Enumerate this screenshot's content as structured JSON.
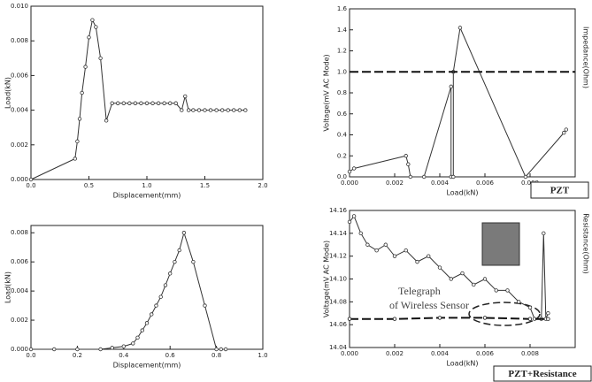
{
  "chart_data": [
    {
      "type": "line",
      "x_label": "Displacement(mm)",
      "y_label": "Load(kN)",
      "xlim": [
        0,
        2.0
      ],
      "ylim": [
        0,
        0.01
      ],
      "xticks": [
        {
          "value": 0,
          "label": "0.0"
        },
        {
          "value": 0.5,
          "label": "0.5"
        },
        {
          "value": 1.0,
          "label": "1.0"
        },
        {
          "value": 1.5,
          "label": "1.5"
        },
        {
          "value": 2.0,
          "label": "2.0"
        }
      ],
      "yticks": [
        {
          "value": 0,
          "label": "0.000"
        },
        {
          "value": 0.002,
          "label": "0.002"
        },
        {
          "value": 0.004,
          "label": "0.004"
        },
        {
          "value": 0.006,
          "label": "0.006"
        },
        {
          "value": 0.008,
          "label": "0.008"
        },
        {
          "value": 0.01,
          "label": "0.010"
        }
      ],
      "series": [
        {
          "color": "#333333",
          "dash": false,
          "markers": true,
          "x": [
            0,
            0.38,
            0.4,
            0.42,
            0.44,
            0.47,
            0.5,
            0.53,
            0.56,
            0.6,
            0.65,
            0.7,
            0.75,
            0.8,
            0.85,
            0.9,
            0.95,
            1.0,
            1.05,
            1.1,
            1.15,
            1.2,
            1.25,
            1.3,
            1.33,
            1.36,
            1.4,
            1.45,
            1.5,
            1.55,
            1.6,
            1.65,
            1.7,
            1.75,
            1.8,
            1.85
          ],
          "values": [
            0,
            0.0012,
            0.0022,
            0.0035,
            0.005,
            0.0065,
            0.0082,
            0.0092,
            0.0088,
            0.007,
            0.0034,
            0.0044,
            0.0044,
            0.0044,
            0.0044,
            0.0044,
            0.0044,
            0.0044,
            0.0044,
            0.0044,
            0.0044,
            0.0044,
            0.0044,
            0.004,
            0.0048,
            0.004,
            0.004,
            0.004,
            0.004,
            0.004,
            0.004,
            0.004,
            0.004,
            0.004,
            0.004,
            0.004
          ]
        }
      ]
    },
    {
      "type": "line",
      "x_label": "Load(kN)",
      "y_label": "Voltage(mV AC Mode)",
      "y2_label": "Impedance(Ohm)",
      "caption": "PZT",
      "xlim": [
        0,
        0.01
      ],
      "ylim": [
        0,
        1.6
      ],
      "xticks": [
        {
          "value": 0,
          "label": "0.000"
        },
        {
          "value": 0.002,
          "label": "0.002"
        },
        {
          "value": 0.004,
          "label": "0.004"
        },
        {
          "value": 0.006,
          "label": "0.006"
        },
        {
          "value": 0.008,
          "label": "0.008"
        }
      ],
      "yticks": [
        {
          "value": 0,
          "label": "0.0"
        },
        {
          "value": 0.2,
          "label": "0.2"
        },
        {
          "value": 0.4,
          "label": "0.4"
        },
        {
          "value": 0.6,
          "label": "0.6"
        },
        {
          "value": 0.8,
          "label": "0.8"
        },
        {
          "value": 1.0,
          "label": "1.0"
        },
        {
          "value": 1.2,
          "label": "1.2"
        },
        {
          "value": 1.4,
          "label": "1.4"
        },
        {
          "value": 1.6,
          "label": "1.6"
        }
      ],
      "series": [
        {
          "color": "#333333",
          "dash": false,
          "markers": true,
          "x": [
            0,
            0.0002,
            0.0025,
            0.0026,
            0.0027,
            0.0033,
            0.0045,
            0.0045,
            0.0046,
            0.0046,
            0.0049,
            0.0078,
            0.0095,
            0.0096
          ],
          "values": [
            0.05,
            0.08,
            0.2,
            0.12,
            0,
            0,
            0.86,
            0,
            0,
            1.0,
            1.42,
            0,
            0.42,
            0.45
          ]
        },
        {
          "color": "#111111",
          "dash": true,
          "markers": false,
          "x": [
            0,
            0.01
          ],
          "values": [
            1.0,
            1.0
          ]
        }
      ]
    },
    {
      "type": "line",
      "x_label": "Displacement(mm)",
      "y_label": "Load(kN)",
      "xlim": [
        0,
        1.0
      ],
      "ylim": [
        0,
        0.0085
      ],
      "xticks": [
        {
          "value": 0,
          "label": "0.0"
        },
        {
          "value": 0.2,
          "label": "0.2"
        },
        {
          "value": 0.4,
          "label": "0.4"
        },
        {
          "value": 0.6,
          "label": "0.6"
        },
        {
          "value": 0.8,
          "label": "0.8"
        },
        {
          "value": 1.0,
          "label": "1.0"
        }
      ],
      "yticks": [
        {
          "value": 0,
          "label": "0.000"
        },
        {
          "value": 0.002,
          "label": "0.002"
        },
        {
          "value": 0.004,
          "label": "0.004"
        },
        {
          "value": 0.006,
          "label": "0.006"
        },
        {
          "value": 0.008,
          "label": "0.008"
        }
      ],
      "series": [
        {
          "color": "#333333",
          "dash": false,
          "markers": true,
          "x": [
            0,
            0.1,
            0.2,
            0.3,
            0.35,
            0.4,
            0.44,
            0.46,
            0.48,
            0.5,
            0.52,
            0.54,
            0.56,
            0.58,
            0.6,
            0.62,
            0.64,
            0.66,
            0.7,
            0.75,
            0.8,
            0.82,
            0.84
          ],
          "values": [
            0,
            0,
            0,
            0,
            0.0001,
            0.0002,
            0.0004,
            0.0008,
            0.0013,
            0.0018,
            0.0024,
            0.003,
            0.0036,
            0.0044,
            0.0052,
            0.006,
            0.0068,
            0.008,
            0.006,
            0.003,
            0,
            0,
            0
          ]
        }
      ]
    },
    {
      "type": "line",
      "x_label": "Load(kN)",
      "y_label": "Voltage(mV AC Mode)",
      "y2_label": "Resistance(Ohm)",
      "caption": "PZT+Resistance",
      "annotations": [
        "Telegraph",
        "of Wireless Sensor"
      ],
      "xlim": [
        0,
        0.01
      ],
      "ylim": [
        14.04,
        14.16
      ],
      "xticks": [
        {
          "value": 0,
          "label": "0.000"
        },
        {
          "value": 0.002,
          "label": "0.002"
        },
        {
          "value": 0.004,
          "label": "0.004"
        },
        {
          "value": 0.006,
          "label": "0.006"
        },
        {
          "value": 0.008,
          "label": "0.008"
        }
      ],
      "yticks": [
        {
          "value": 14.04,
          "label": "14.04"
        },
        {
          "value": 14.06,
          "label": "14.06"
        },
        {
          "value": 14.08,
          "label": "14.08"
        },
        {
          "value": 14.1,
          "label": "14.10"
        },
        {
          "value": 14.12,
          "label": "14.12"
        },
        {
          "value": 14.14,
          "label": "14.14"
        },
        {
          "value": 14.16,
          "label": "14.16"
        }
      ],
      "series": [
        {
          "color": "#333333",
          "dash": false,
          "markers": true,
          "x": [
            0,
            0.0002,
            0.0005,
            0.0008,
            0.0012,
            0.0016,
            0.002,
            0.0025,
            0.003,
            0.0035,
            0.004,
            0.0045,
            0.005,
            0.0055,
            0.006,
            0.0065,
            0.007,
            0.0075,
            0.008,
            0.0082,
            0.0085,
            0.0086,
            0.0087,
            0.0088
          ],
          "values": [
            14.15,
            14.155,
            14.14,
            14.13,
            14.125,
            14.13,
            14.12,
            14.125,
            14.115,
            14.12,
            14.11,
            14.1,
            14.105,
            14.095,
            14.1,
            14.09,
            14.09,
            14.08,
            14.075,
            14.065,
            14.065,
            14.14,
            14.065,
            14.07
          ]
        },
        {
          "color": "#111111",
          "dash": true,
          "markers": true,
          "x": [
            0,
            0.002,
            0.004,
            0.006,
            0.008,
            0.0088
          ],
          "values": [
            14.065,
            14.065,
            14.066,
            14.066,
            14.065,
            14.065
          ]
        }
      ]
    }
  ]
}
